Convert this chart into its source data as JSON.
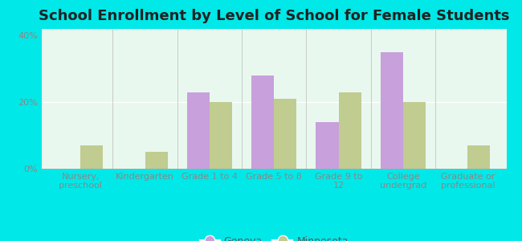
{
  "title": "School Enrollment by Level of School for Female Students",
  "categories": [
    "Nursery,\npreschool",
    "Kindergarten",
    "Grade 1 to 4",
    "Grade 5 to 8",
    "Grade 9 to\n12",
    "College\nundergrad",
    "Graduate or\nprofessional"
  ],
  "geneva": [
    0,
    0,
    23,
    28,
    14,
    35,
    0
  ],
  "minnesota": [
    7,
    5,
    20,
    21,
    23,
    20,
    7
  ],
  "geneva_color": "#c8a0dc",
  "minnesota_color": "#c0cc90",
  "outer_bg": "#00e8e8",
  "plot_bg": "#e8f8ee",
  "ylim": [
    0,
    42
  ],
  "yticks": [
    0,
    20,
    40
  ],
  "ytick_labels": [
    "0%",
    "20%",
    "40%"
  ],
  "bar_width": 0.35,
  "title_fontsize": 13,
  "tick_fontsize": 8,
  "legend_fontsize": 9,
  "axis_color": "#888888"
}
